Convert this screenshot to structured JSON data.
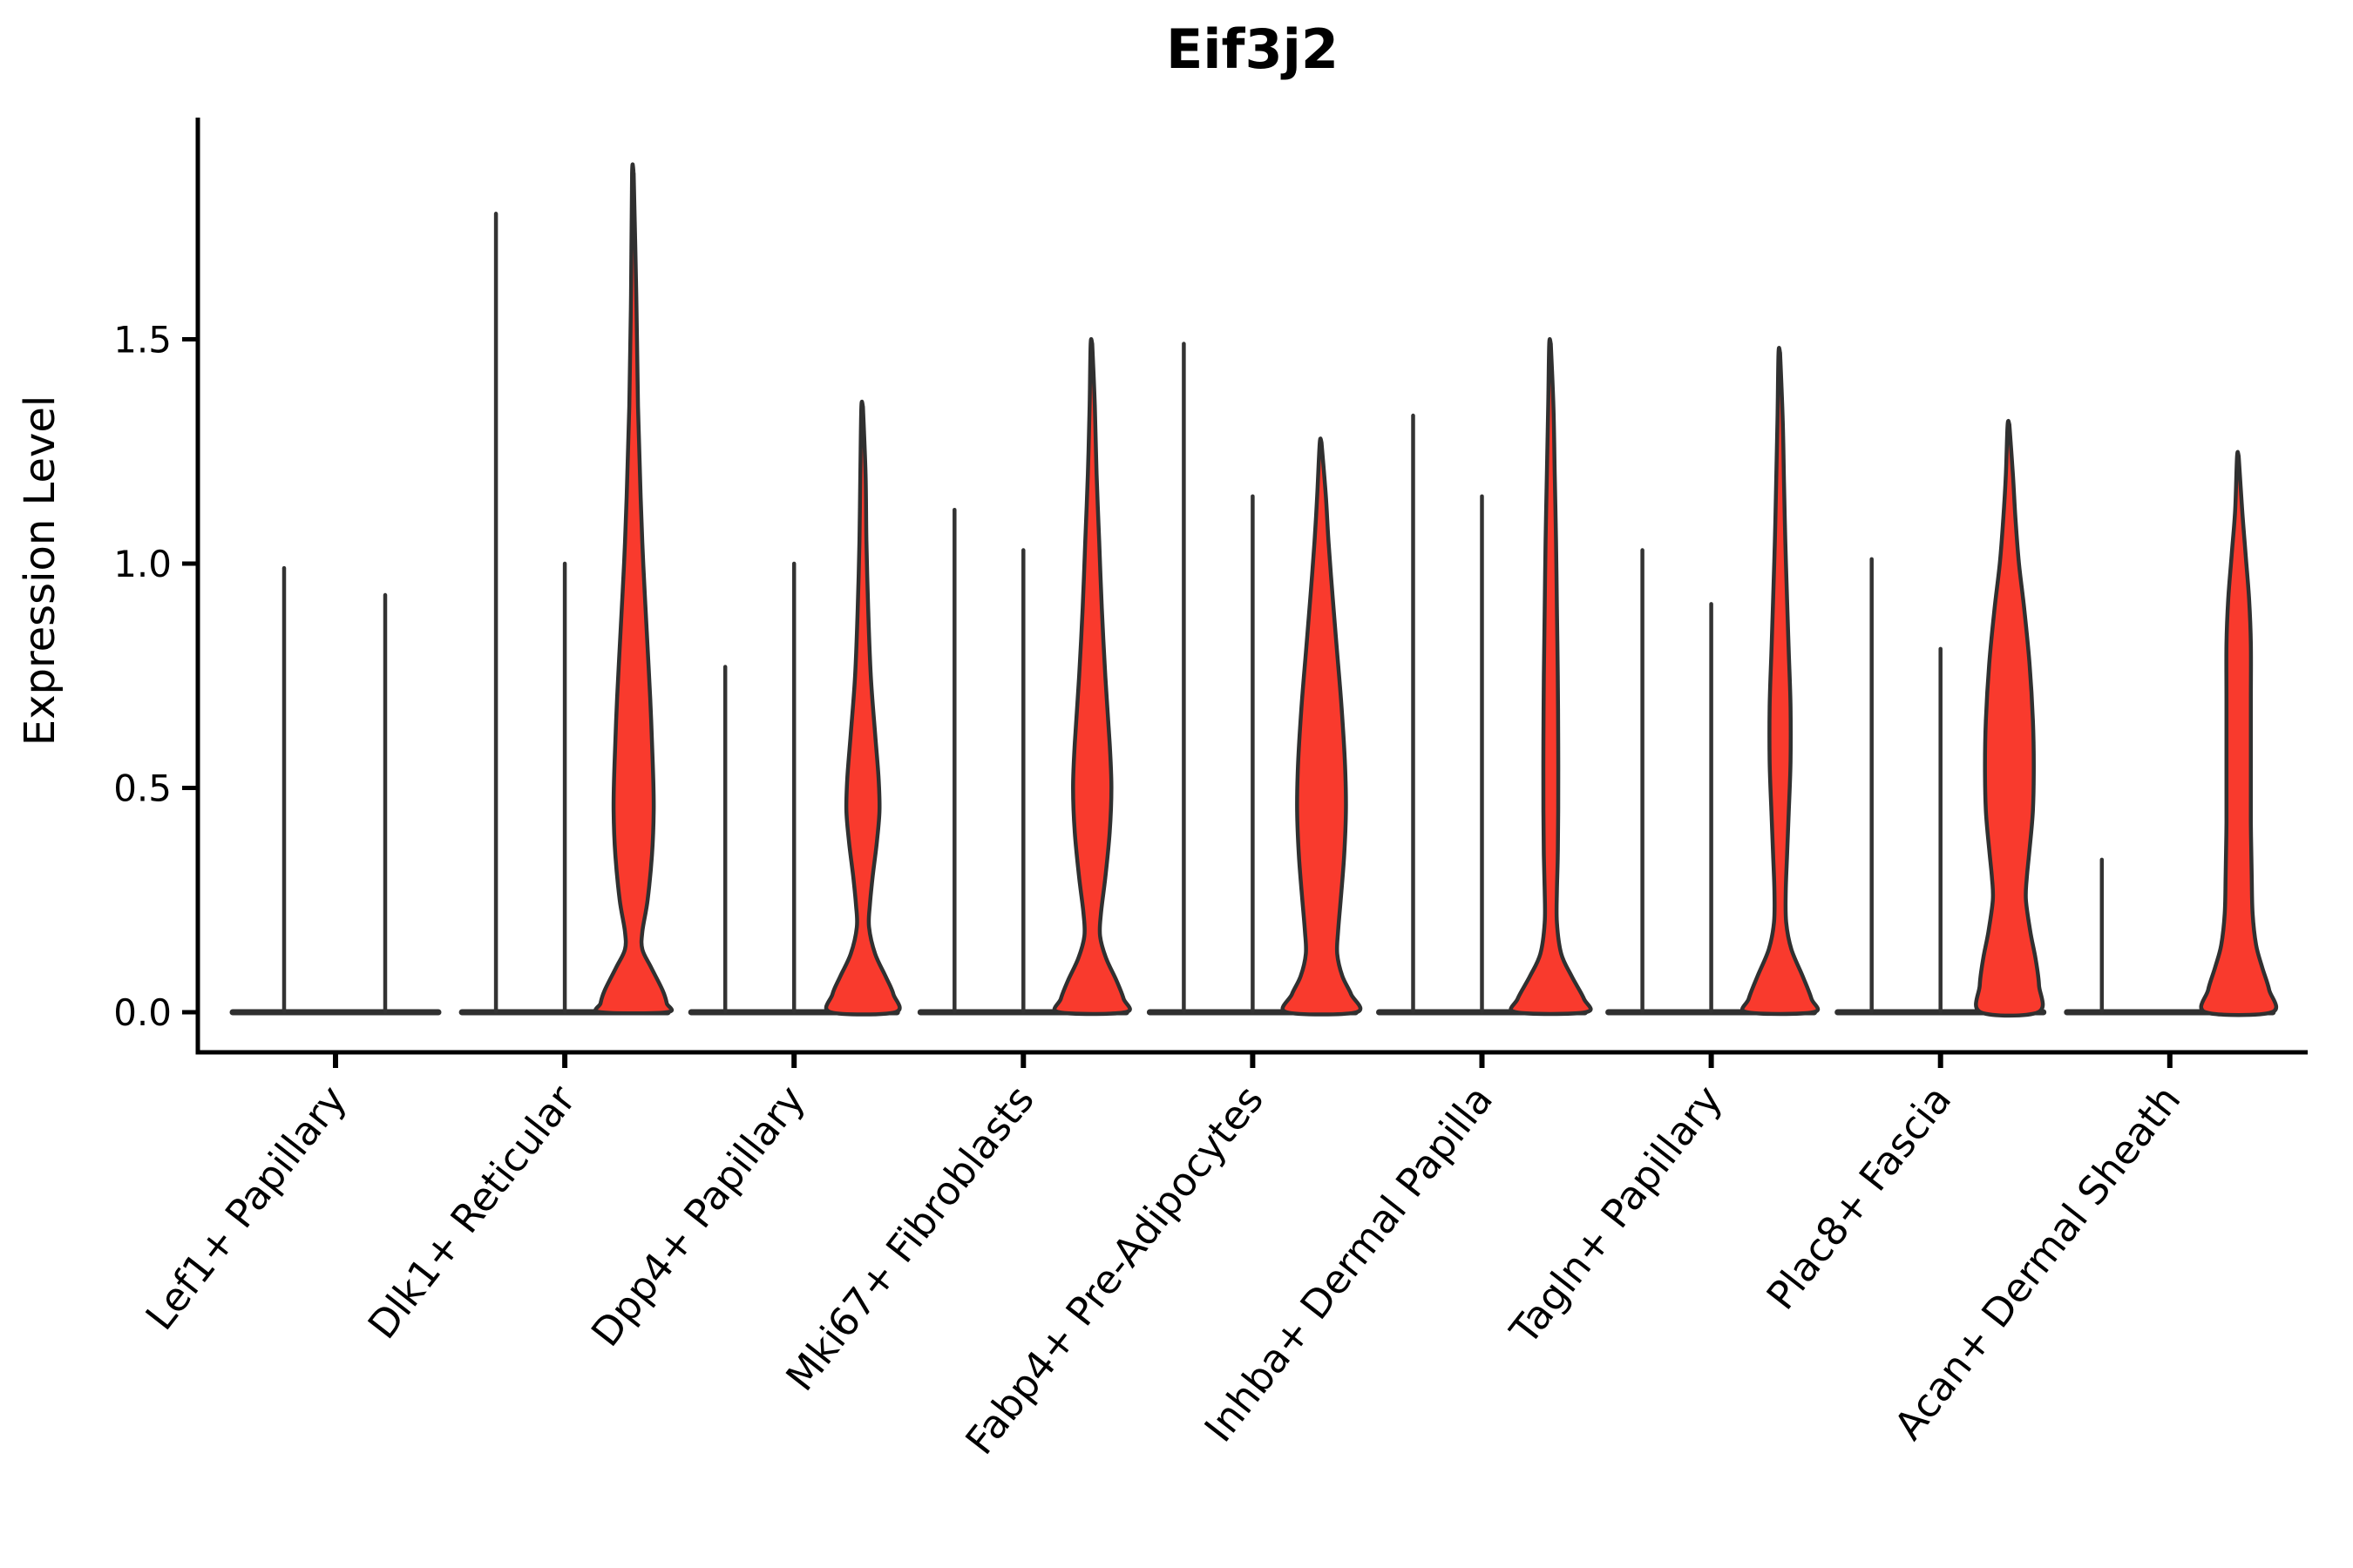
{
  "title": "Eif3j2",
  "colors": {
    "red_fill": "#f93a2d",
    "violin_outline": "#303030",
    "spike": "#333333",
    "axis": "#000000",
    "background": "#ffffff"
  },
  "chart_data": {
    "type": "violin",
    "title": "Eif3j2",
    "xlabel": "",
    "ylabel": "Expression Level",
    "ylim": [
      -0.09,
      1.99
    ],
    "grid": false,
    "legend": "none",
    "y_ticks": [
      {
        "value": 0.0,
        "label": "0.0"
      },
      {
        "value": 0.5,
        "label": "0.5"
      },
      {
        "value": 1.0,
        "label": "1.0"
      },
      {
        "value": 1.5,
        "label": "1.5"
      }
    ],
    "categories": [
      "Lef1+ Papillary",
      "Dlk1+ Reticular",
      "Dpp4+ Papillary",
      "Mki67+ Fibroblasts",
      "Fabp4+ Pre-Adipocytes",
      "Inhba+ Dermal Papilla",
      "Tagln+ Papillary",
      "Plac8+ Fascia",
      "Acan+ Dermal Sheath"
    ],
    "groups": [
      {
        "name": "Lef1+ Papillary",
        "violins": [
          {
            "kind": "spike",
            "offset": -59,
            "max": 0.99
          },
          {
            "kind": "spike",
            "offset": 57,
            "max": 0.93
          }
        ]
      },
      {
        "name": "Dlk1+ Reticular",
        "violins": [
          {
            "kind": "spike",
            "offset": -79,
            "max": 1.78
          },
          {
            "kind": "spike",
            "offset": 0,
            "max": 1.0
          },
          {
            "kind": "red",
            "offset": 79,
            "max": 1.87,
            "profile": [
              [
                1.87,
                1.8
              ],
              [
                1.6,
                3
              ],
              [
                1.35,
                5
              ],
              [
                1.15,
                8
              ],
              [
                1.0,
                11
              ],
              [
                0.85,
                15
              ],
              [
                0.7,
                19
              ],
              [
                0.55,
                22
              ],
              [
                0.45,
                23
              ],
              [
                0.35,
                21
              ],
              [
                0.25,
                16
              ],
              [
                0.18,
                10
              ],
              [
                0.14,
                10
              ],
              [
                0.1,
                20
              ],
              [
                0.05,
                33
              ],
              [
                0.02,
                38
              ],
              [
                0,
                38
              ]
            ]
          }
        ]
      },
      {
        "name": "Dpp4+ Papillary",
        "violins": [
          {
            "kind": "spike",
            "offset": -79,
            "max": 0.77
          },
          {
            "kind": "spike",
            "offset": 0,
            "max": 1.0
          },
          {
            "kind": "red",
            "offset": 79,
            "max": 1.35,
            "profile": [
              [
                1.35,
                1.8
              ],
              [
                1.2,
                3
              ],
              [
                1.05,
                4
              ],
              [
                0.9,
                6
              ],
              [
                0.75,
                9
              ],
              [
                0.62,
                14
              ],
              [
                0.52,
                18
              ],
              [
                0.45,
                19
              ],
              [
                0.38,
                16
              ],
              [
                0.3,
                11
              ],
              [
                0.24,
                8
              ],
              [
                0.19,
                7
              ],
              [
                0.13,
                14
              ],
              [
                0.08,
                26
              ],
              [
                0.04,
                35
              ],
              [
                0,
                37
              ]
            ]
          }
        ]
      },
      {
        "name": "Mki67+ Fibroblasts",
        "violins": [
          {
            "kind": "spike",
            "offset": -79,
            "max": 1.12
          },
          {
            "kind": "spike",
            "offset": 0,
            "max": 1.03
          },
          {
            "kind": "red",
            "offset": 79,
            "max": 1.49,
            "profile": [
              [
                1.49,
                1.8
              ],
              [
                1.35,
                3
              ],
              [
                1.2,
                5
              ],
              [
                1.05,
                8
              ],
              [
                0.9,
                11
              ],
              [
                0.75,
                15
              ],
              [
                0.6,
                20
              ],
              [
                0.5,
                22
              ],
              [
                0.4,
                20
              ],
              [
                0.3,
                15
              ],
              [
                0.22,
                10
              ],
              [
                0.17,
                9
              ],
              [
                0.12,
                16
              ],
              [
                0.07,
                28
              ],
              [
                0.03,
                36
              ],
              [
                0,
                38
              ]
            ]
          }
        ]
      },
      {
        "name": "Fabp4+ Pre-Adipocytes",
        "violins": [
          {
            "kind": "spike",
            "offset": -79,
            "max": 1.49
          },
          {
            "kind": "spike",
            "offset": 0,
            "max": 1.15
          },
          {
            "kind": "red",
            "offset": 79,
            "max": 1.27,
            "profile": [
              [
                1.27,
                2
              ],
              [
                1.15,
                5
              ],
              [
                1.05,
                8
              ],
              [
                0.92,
                13
              ],
              [
                0.8,
                18
              ],
              [
                0.68,
                23
              ],
              [
                0.55,
                27
              ],
              [
                0.45,
                28
              ],
              [
                0.35,
                26
              ],
              [
                0.25,
                22
              ],
              [
                0.18,
                19
              ],
              [
                0.13,
                18
              ],
              [
                0.08,
                24
              ],
              [
                0.04,
                34
              ],
              [
                0,
                40
              ]
            ]
          }
        ]
      },
      {
        "name": "Inhba+ Dermal Papilla",
        "violins": [
          {
            "kind": "spike",
            "offset": -79,
            "max": 1.33
          },
          {
            "kind": "spike",
            "offset": 0,
            "max": 1.15
          },
          {
            "kind": "red",
            "offset": 79,
            "max": 1.49,
            "profile": [
              [
                1.49,
                1.8
              ],
              [
                1.35,
                3
              ],
              [
                1.2,
                4.5
              ],
              [
                1.05,
                6
              ],
              [
                0.9,
                7
              ],
              [
                0.75,
                8
              ],
              [
                0.6,
                8.5
              ],
              [
                0.45,
                8.5
              ],
              [
                0.35,
                8
              ],
              [
                0.27,
                7
              ],
              [
                0.2,
                7
              ],
              [
                0.13,
                12
              ],
              [
                0.08,
                24
              ],
              [
                0.03,
                38
              ],
              [
                0,
                40
              ]
            ]
          }
        ]
      },
      {
        "name": "Tagln+ Papillary",
        "violins": [
          {
            "kind": "spike",
            "offset": -79,
            "max": 1.03
          },
          {
            "kind": "spike",
            "offset": 0,
            "max": 0.91
          },
          {
            "kind": "red",
            "offset": 79,
            "max": 1.47,
            "profile": [
              [
                1.47,
                1.8
              ],
              [
                1.32,
                3
              ],
              [
                1.18,
                4.5
              ],
              [
                1.05,
                6
              ],
              [
                0.92,
                8
              ],
              [
                0.8,
                10
              ],
              [
                0.68,
                12
              ],
              [
                0.56,
                12
              ],
              [
                0.45,
                10
              ],
              [
                0.35,
                8
              ],
              [
                0.27,
                6.5
              ],
              [
                0.2,
                7
              ],
              [
                0.14,
                13
              ],
              [
                0.08,
                26
              ],
              [
                0.03,
                36
              ],
              [
                0,
                38
              ]
            ]
          }
        ]
      },
      {
        "name": "Plac8+ Fascia",
        "violins": [
          {
            "kind": "spike",
            "offset": -79,
            "max": 1.01
          },
          {
            "kind": "spike",
            "offset": 0,
            "max": 0.81
          },
          {
            "kind": "red",
            "offset": 79,
            "max": 1.31,
            "profile": [
              [
                1.31,
                2
              ],
              [
                1.2,
                4
              ],
              [
                1.1,
                7
              ],
              [
                1.0,
                11
              ],
              [
                0.9,
                17
              ],
              [
                0.78,
                23
              ],
              [
                0.65,
                27
              ],
              [
                0.55,
                28
              ],
              [
                0.45,
                27
              ],
              [
                0.36,
                23
              ],
              [
                0.3,
                20
              ],
              [
                0.25,
                19
              ],
              [
                0.18,
                24
              ],
              [
                0.12,
                30
              ],
              [
                0.06,
                34
              ],
              [
                0,
                33
              ]
            ]
          }
        ]
      },
      {
        "name": "Acan+ Dermal Sheath",
        "violins": [
          {
            "kind": "spike",
            "offset": -78,
            "max": 0.34
          },
          {
            "kind": "red",
            "offset": 79,
            "max": 1.24,
            "profile": [
              [
                1.24,
                1.8
              ],
              [
                1.12,
                4
              ],
              [
                1.02,
                8
              ],
              [
                0.92,
                12
              ],
              [
                0.82,
                14
              ],
              [
                0.7,
                14
              ],
              [
                0.55,
                14
              ],
              [
                0.42,
                14
              ],
              [
                0.3,
                15
              ],
              [
                0.22,
                16
              ],
              [
                0.15,
                20
              ],
              [
                0.1,
                27
              ],
              [
                0.05,
                35
              ],
              [
                0,
                38
              ]
            ]
          }
        ]
      }
    ]
  }
}
